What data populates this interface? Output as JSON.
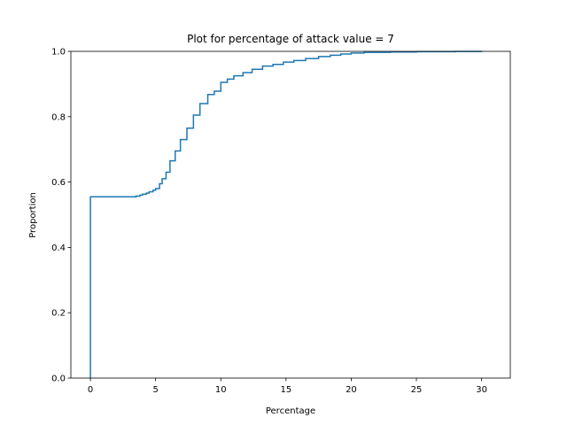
{
  "chart_data": {
    "type": "line",
    "title": "Plot for percentage of attack value = 7",
    "xlabel": "Percentage",
    "ylabel": "Proportion",
    "xlim": [
      -1.5,
      32.2
    ],
    "ylim": [
      0,
      1
    ],
    "xticks": [
      0,
      5,
      10,
      15,
      20,
      25,
      30
    ],
    "xtick_labels": [
      "0",
      "5",
      "10",
      "15",
      "20",
      "25",
      "30"
    ],
    "yticks": [
      0,
      0.2,
      0.4,
      0.6,
      0.8,
      1.0
    ],
    "ytick_labels": [
      "0.0",
      "0.2",
      "0.4",
      "0.6",
      "0.8",
      "1.0"
    ],
    "grid": false,
    "series": [
      {
        "color": "#1f77b4",
        "step": true,
        "x": [
          0,
          0,
          3.5,
          3.8,
          4.0,
          4.3,
          4.5,
          4.8,
          5.0,
          5.3,
          5.5,
          5.8,
          6.1,
          6.5,
          6.9,
          7.4,
          7.9,
          8.4,
          9.0,
          9.5,
          10.0,
          10.5,
          11.0,
          11.7,
          12.4,
          13.2,
          14.0,
          14.8,
          15.6,
          16.5,
          17.5,
          18.4,
          19.2,
          20.0,
          21.0,
          23.0,
          25.0,
          28.0,
          30.0
        ],
        "y": [
          0,
          0.555,
          0.557,
          0.56,
          0.563,
          0.566,
          0.57,
          0.575,
          0.58,
          0.595,
          0.61,
          0.63,
          0.665,
          0.695,
          0.73,
          0.765,
          0.805,
          0.84,
          0.868,
          0.878,
          0.905,
          0.915,
          0.925,
          0.935,
          0.945,
          0.955,
          0.96,
          0.967,
          0.972,
          0.978,
          0.984,
          0.988,
          0.992,
          0.995,
          0.997,
          0.998,
          0.999,
          0.9995,
          1.0
        ]
      }
    ]
  }
}
